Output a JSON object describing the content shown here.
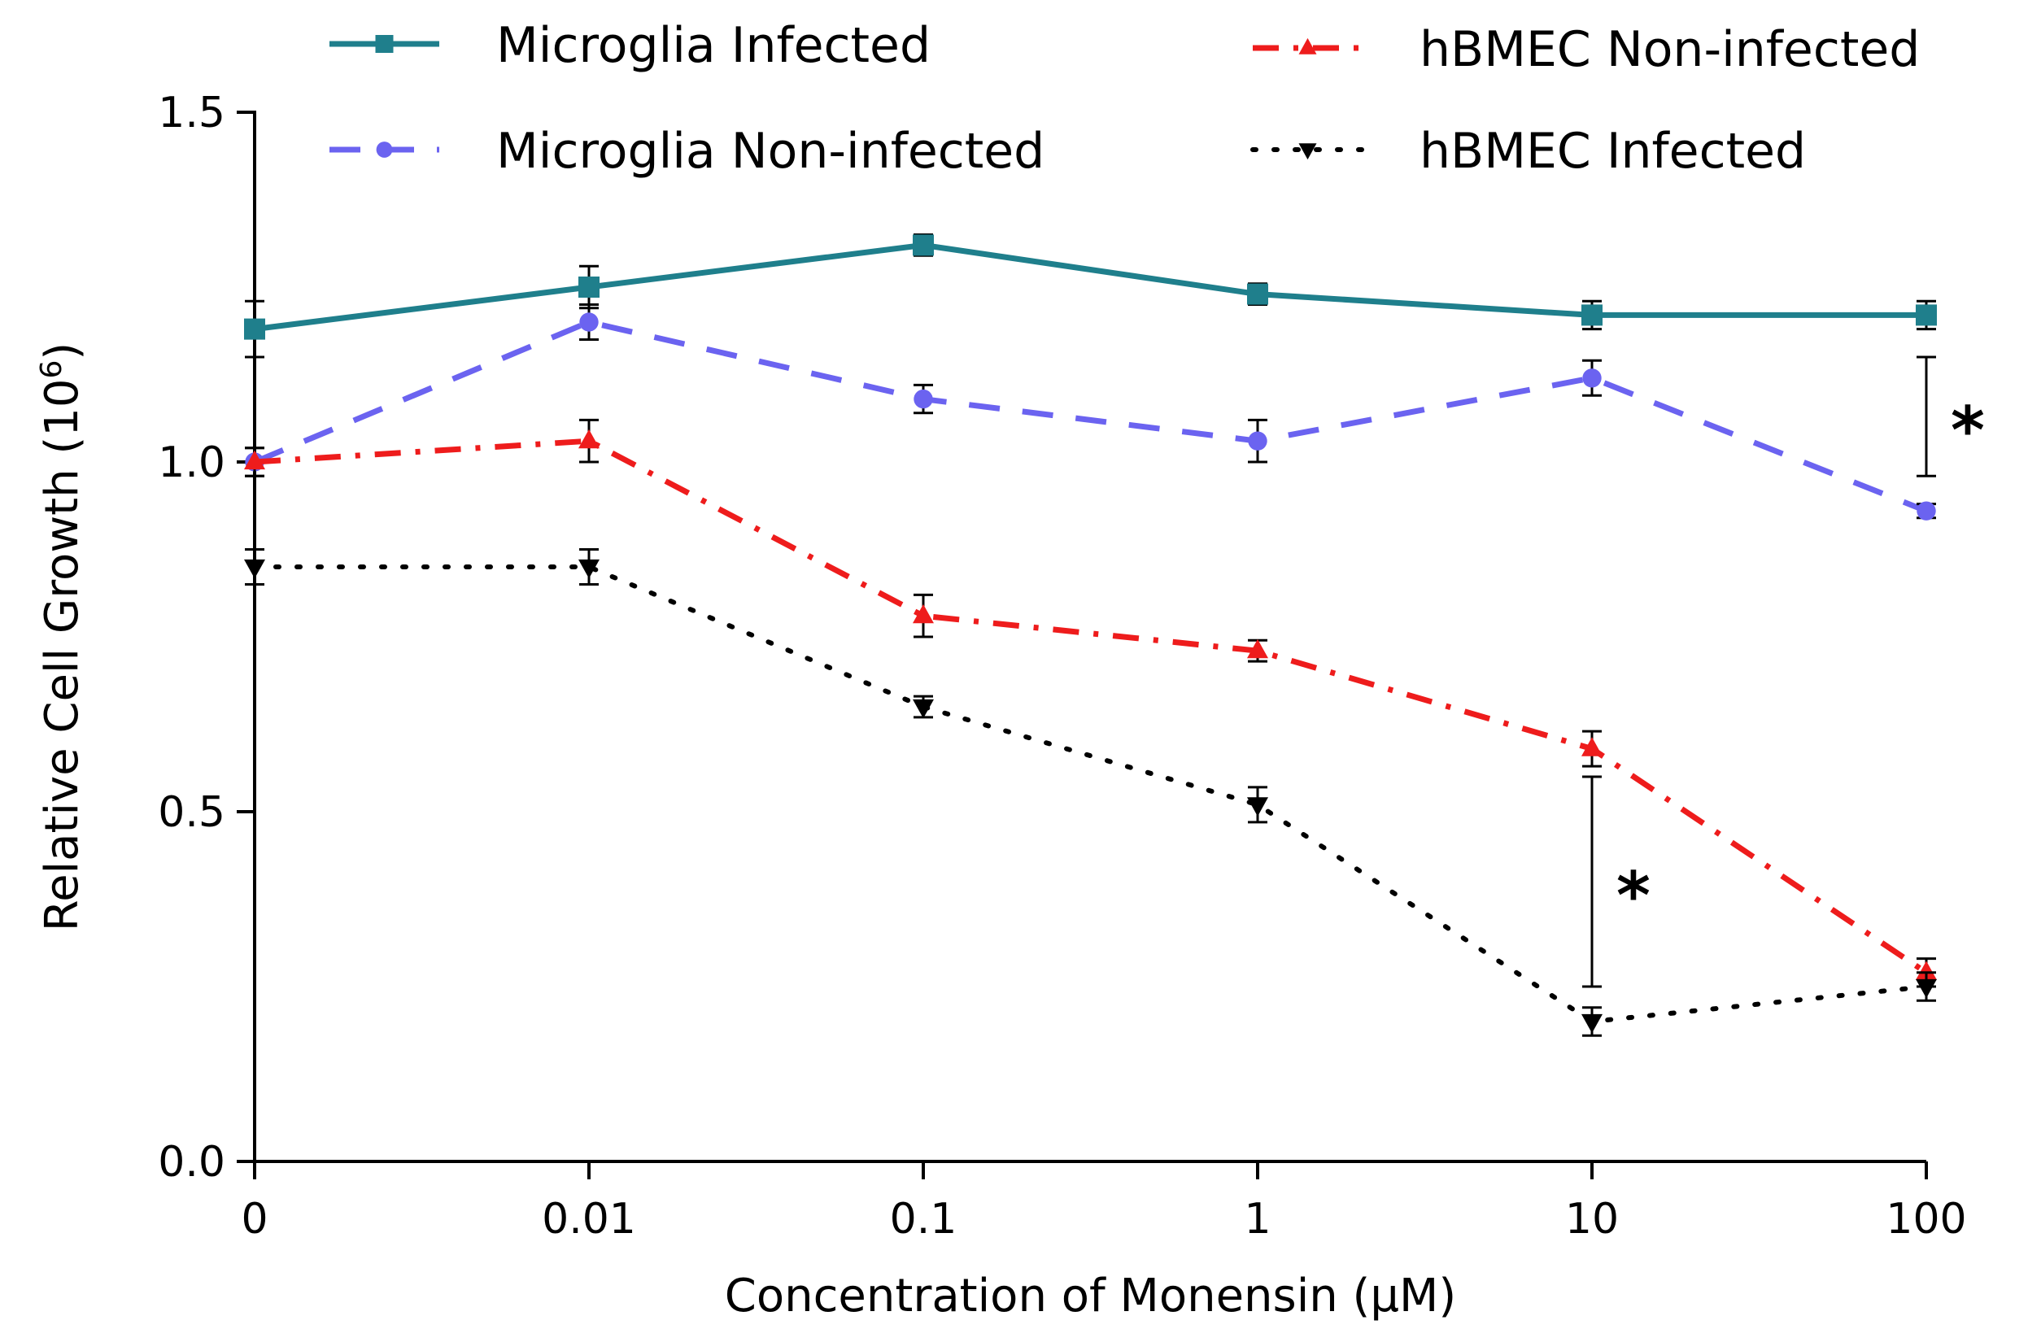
{
  "chart_data": {
    "type": "line",
    "title": "",
    "xlabel": "Concentration of Monensin (μM)",
    "ylabel_main": "Relative Cell Growth (10",
    "ylabel_sup": "6",
    "ylabel_close": ")",
    "categories": [
      "0",
      "0.01",
      "0.1",
      "1",
      "10",
      "100"
    ],
    "ylim": [
      0,
      1.5
    ],
    "yticks": [
      "0.0",
      "0.5",
      "1.0",
      "1.5"
    ],
    "legend_position": "top",
    "series": [
      {
        "name": "Microglia Infected",
        "color": "#1f7f8c",
        "line": "solid",
        "marker": "square",
        "values": [
          1.19,
          1.25,
          1.31,
          1.24,
          1.21,
          1.21
        ],
        "errors": [
          0.04,
          0.03,
          0.015,
          0.015,
          0.02,
          0.02
        ]
      },
      {
        "name": "Microglia Non-infected",
        "color": "#6b63f0",
        "line": "dashed",
        "marker": "circle",
        "values": [
          1.0,
          1.2,
          1.09,
          1.03,
          1.12,
          0.93
        ],
        "errors": [
          0.02,
          0.025,
          0.02,
          0.03,
          0.025,
          0.01
        ]
      },
      {
        "name": "hBMEC Non-infected",
        "color": "#ee1c1c",
        "line": "dashdot",
        "marker": "triangle-up",
        "values": [
          1.0,
          1.03,
          0.78,
          0.73,
          0.59,
          0.27
        ],
        "errors": [
          0.02,
          0.03,
          0.03,
          0.015,
          0.025,
          0.02
        ]
      },
      {
        "name": "hBMEC Infected",
        "color": "#000000",
        "line": "dotted",
        "marker": "triangle-down",
        "values": [
          0.85,
          0.85,
          0.65,
          0.51,
          0.2,
          0.25
        ],
        "errors": [
          0.025,
          0.025,
          0.015,
          0.025,
          0.02,
          0.02
        ]
      }
    ],
    "annotations": [
      {
        "label": "*",
        "category_index": 5,
        "y_low": 0.98,
        "y_high": 1.15
      },
      {
        "label": "*",
        "category_index": 4,
        "y_low": 0.25,
        "y_high": 0.55
      }
    ]
  }
}
